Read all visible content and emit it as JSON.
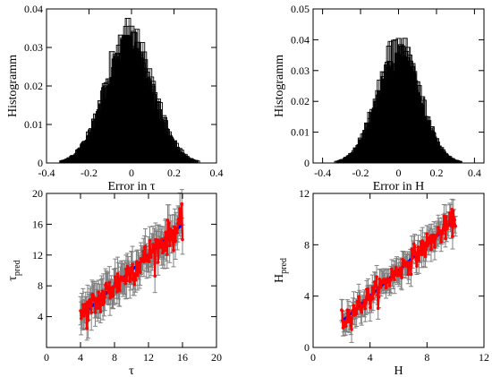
{
  "chart_data": [
    {
      "type": "bar",
      "variant": "overlaid-histograms",
      "xlabel": "Error in τ",
      "ylabel": "Histogramm",
      "xlim": [
        -0.4,
        0.4
      ],
      "ylim": [
        0,
        0.04
      ],
      "xticks": [
        "-0.4",
        "-0.2",
        "0",
        "0.2",
        "0.4"
      ],
      "yticks": [
        "0",
        "0.01",
        "0.02",
        "0.03",
        "0.04"
      ],
      "bin_width": 0.025,
      "center": -0.01,
      "sigma": 0.11,
      "peak": 0.0345,
      "num_histograms": 7,
      "colors": {
        "outline": "#000000",
        "fill": "#000000"
      }
    },
    {
      "type": "bar",
      "variant": "overlaid-histograms",
      "xlabel": "Error in H",
      "ylabel": "Histogramm",
      "xlim": [
        -0.45,
        0.45
      ],
      "ylim": [
        0,
        0.05
      ],
      "xticks": [
        "-0.4",
        "-0.2",
        "0",
        "0.2",
        "0.4"
      ],
      "yticks": [
        "0",
        "0.01",
        "0.02",
        "0.03",
        "0.04",
        "0.05"
      ],
      "bin_width": 0.025,
      "center": 0.0,
      "sigma": 0.11,
      "peak": 0.04,
      "num_histograms": 7,
      "colors": {
        "outline": "#000000",
        "fill": "#000000"
      }
    },
    {
      "type": "scatter",
      "variant": "prediction-with-errorbars",
      "xlabel": "τ",
      "ylabel": "τ",
      "ylabel_sub": "pred",
      "xlim": [
        0,
        20
      ],
      "ylim": [
        0,
        20
      ],
      "xticks": [
        "0",
        "4",
        "8",
        "12",
        "16",
        "20"
      ],
      "yticks": [
        "4",
        "8",
        "12",
        "16",
        "20"
      ],
      "x_range": [
        4,
        16
      ],
      "errorbar": 2.0,
      "noise": 1.0,
      "points": 160,
      "diagonal": [
        [
          4,
          4
        ],
        [
          16,
          16
        ]
      ],
      "colors": {
        "points": "#ff0000",
        "errorbars": "#808080",
        "reference": "#0000ff"
      }
    },
    {
      "type": "scatter",
      "variant": "prediction-with-errorbars",
      "xlabel": "H",
      "ylabel": "H",
      "ylabel_sub": "pred",
      "xlim": [
        0,
        12
      ],
      "ylim": [
        0,
        12
      ],
      "xticks": [
        "0",
        "4",
        "8",
        "12"
      ],
      "yticks": [
        "0",
        "4",
        "8",
        "12"
      ],
      "x_range": [
        2,
        10
      ],
      "errorbar": 0.9,
      "noise": 0.45,
      "points": 160,
      "diagonal": [
        [
          2,
          2
        ],
        [
          10,
          10
        ]
      ],
      "colors": {
        "points": "#ff0000",
        "errorbars": "#808080",
        "reference": "#0000ff"
      }
    }
  ]
}
